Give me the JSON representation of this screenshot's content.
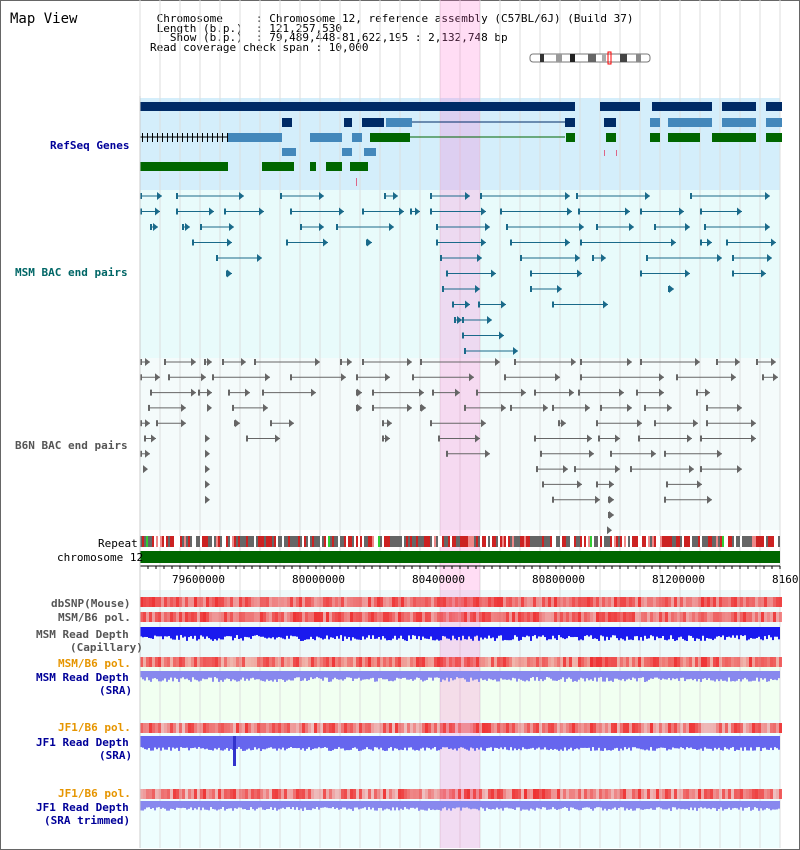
{
  "header": {
    "view_title": "Map View",
    "lines": [
      " Chromosome     : Chromosome 12, reference assembly (C57BL/6J) (Build 37)",
      " Length (b.p.)  : 121,257,530",
      "   Show (b.p.)  : 79,489,448-81,622,195 : 2,132,748 bp",
      "Read coverage check span : 10,000"
    ]
  },
  "tracks": {
    "refseq": "RefSeq Genes",
    "msm_bac": "MSM BAC end pairs",
    "b6n_bac": "B6N BAC end pairs",
    "repeat": "Repeat",
    "chromosome": "chromosome 12",
    "dbsnp": "dbSNP(Mouse)",
    "msm_b6_pol_1": "MSM/B6 pol.",
    "msm_depth_cap_1": "MSM Read Depth",
    "msm_depth_cap_2": "(Capillary)",
    "msm_b6_pol_2": "MSM/B6 pol.",
    "msm_depth_sra_1": "MSM Read Depth",
    "msm_depth_sra_2": "(SRA)",
    "jf1_b6_pol_1": "JF1/B6 pol.",
    "jf1_depth_sra_1": "JF1 Read Depth",
    "jf1_depth_sra_2": "(SRA)",
    "jf1_b6_pol_2": "JF1/B6 pol.",
    "jf1_depth_trim_1": "JF1 Read Depth",
    "jf1_depth_trim_2": "(SRA trimmed)"
  },
  "axis": {
    "ticks": [
      "79600000",
      "80000000",
      "80400000",
      "80800000",
      "81200000",
      "8160"
    ]
  },
  "colors": {
    "refseq_dark": "#002b66",
    "refseq_mid": "#4488bb",
    "refseq_green": "#006600",
    "msm_bac": "#1a6a8a",
    "b6n_bac": "#666666",
    "chrom_bar": "#006600",
    "depth_blue": "#1a1aee",
    "depth_light": "#8888ee",
    "pol_red": "#ee3333",
    "highlight": "#ffccee"
  }
}
